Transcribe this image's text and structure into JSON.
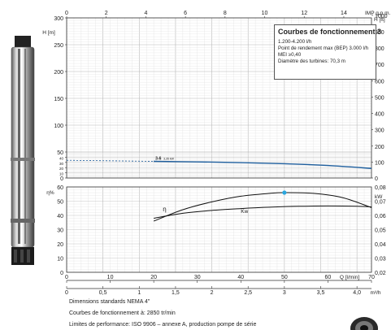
{
  "info_box": {
    "title": "Courbes de fonctionnement 3",
    "lines": [
      "1.200-4.200 l/h",
      "Point de rendement max (BEP) 3.000 l/h",
      "MEI ≥0,40",
      "Diamètre des turbines: 70,3 m"
    ]
  },
  "footnotes": [
    "Dimensions standards NEMA 4\"",
    "Courbes de fonctionnement à: 2850 tr/min",
    "Limites de performance: ISO 9906 – annexe A, production pompe de série"
  ],
  "colors": {
    "head_curve": "#1f5f9e",
    "bep_marker": "#2aa7df",
    "grid": "#b8b8b8",
    "grid_minor": "#e2e2e2"
  },
  "chart_data": [
    {
      "type": "line",
      "panel": "head",
      "left_axis": {
        "label": "H [m]",
        "range": [
          0,
          300
        ],
        "ticks": [
          0,
          10,
          20,
          30,
          40,
          50,
          100,
          150,
          200,
          250,
          300
        ]
      },
      "right_axis": {
        "label": "H [ft]",
        "range": [
          0,
          1000
        ],
        "ticks": [
          0,
          100,
          200,
          300,
          400,
          500,
          600,
          700,
          800,
          900,
          1000
        ]
      },
      "top_axis": {
        "label": "IMP g.p.m.",
        "range": [
          0,
          16
        ],
        "ticks": [
          0,
          2,
          4,
          6,
          8,
          10,
          12,
          14
        ]
      },
      "x_range": [
        0,
        4.2
      ],
      "curve_label": "3-6",
      "curve_sublabel": "3,35 kW",
      "series": [
        {
          "name": "3-6",
          "style": "solid",
          "points": [
            [
              1.2,
              32
            ],
            [
              1.8,
              31
            ],
            [
              2.4,
              29.5
            ],
            [
              3.0,
              27.5
            ],
            [
              3.6,
              24
            ],
            [
              4.2,
              18.5
            ]
          ]
        },
        {
          "style": "dashed",
          "points": [
            [
              0,
              34
            ],
            [
              1.2,
              32
            ]
          ]
        }
      ]
    },
    {
      "type": "line",
      "panel": "efficiency_power",
      "left_axis": {
        "label": "η%",
        "range": [
          0,
          60
        ],
        "ticks": [
          0,
          10,
          20,
          30,
          40,
          50,
          60
        ]
      },
      "right_axis": {
        "label": "kW",
        "range": [
          0.02,
          0.08
        ],
        "ticks": [
          0.02,
          0.03,
          0.04,
          0.05,
          0.06,
          0.07,
          0.08
        ],
        "tick_labels": [
          "0,02",
          "0,03",
          "0,04",
          "0,05",
          "0,06",
          "0,07",
          "0,08"
        ]
      },
      "x_range": [
        0,
        4.2
      ],
      "series": [
        {
          "name": "η",
          "axis": "left",
          "points": [
            [
              1.2,
              36
            ],
            [
              1.6,
              44
            ],
            [
              2.0,
              49.5
            ],
            [
              2.4,
              53.5
            ],
            [
              2.8,
              55.5
            ],
            [
              3.0,
              56
            ],
            [
              3.4,
              55.5
            ],
            [
              3.8,
              52.5
            ],
            [
              4.2,
              45.5
            ]
          ]
        },
        {
          "name": "Kw",
          "axis": "right",
          "points": [
            [
              1.2,
              0.058
            ],
            [
              1.6,
              0.0615
            ],
            [
              2.0,
              0.0635
            ],
            [
              2.4,
              0.0648
            ],
            [
              2.8,
              0.0658
            ],
            [
              3.2,
              0.0664
            ],
            [
              3.6,
              0.0666
            ],
            [
              4.0,
              0.0664
            ],
            [
              4.2,
              0.066
            ]
          ]
        }
      ],
      "bep_point": {
        "x": 3.0,
        "y": 56
      }
    },
    {
      "type": "axis",
      "panel": "flow_scales",
      "lmin_axis": {
        "label": "Q [l/min]",
        "range": [
          0,
          70
        ],
        "ticks": [
          0,
          10,
          20,
          30,
          40,
          50,
          60,
          70
        ]
      },
      "m3h_axis": {
        "label": "m³/h",
        "range": [
          0,
          4.2
        ],
        "ticks": [
          0,
          0.5,
          1,
          1.5,
          2,
          2.5,
          3,
          3.5,
          4.0
        ],
        "tick_labels": [
          "0",
          "0,5",
          "1",
          "1,5",
          "2",
          "2,5",
          "3",
          "3,5",
          "4,0"
        ]
      }
    }
  ]
}
